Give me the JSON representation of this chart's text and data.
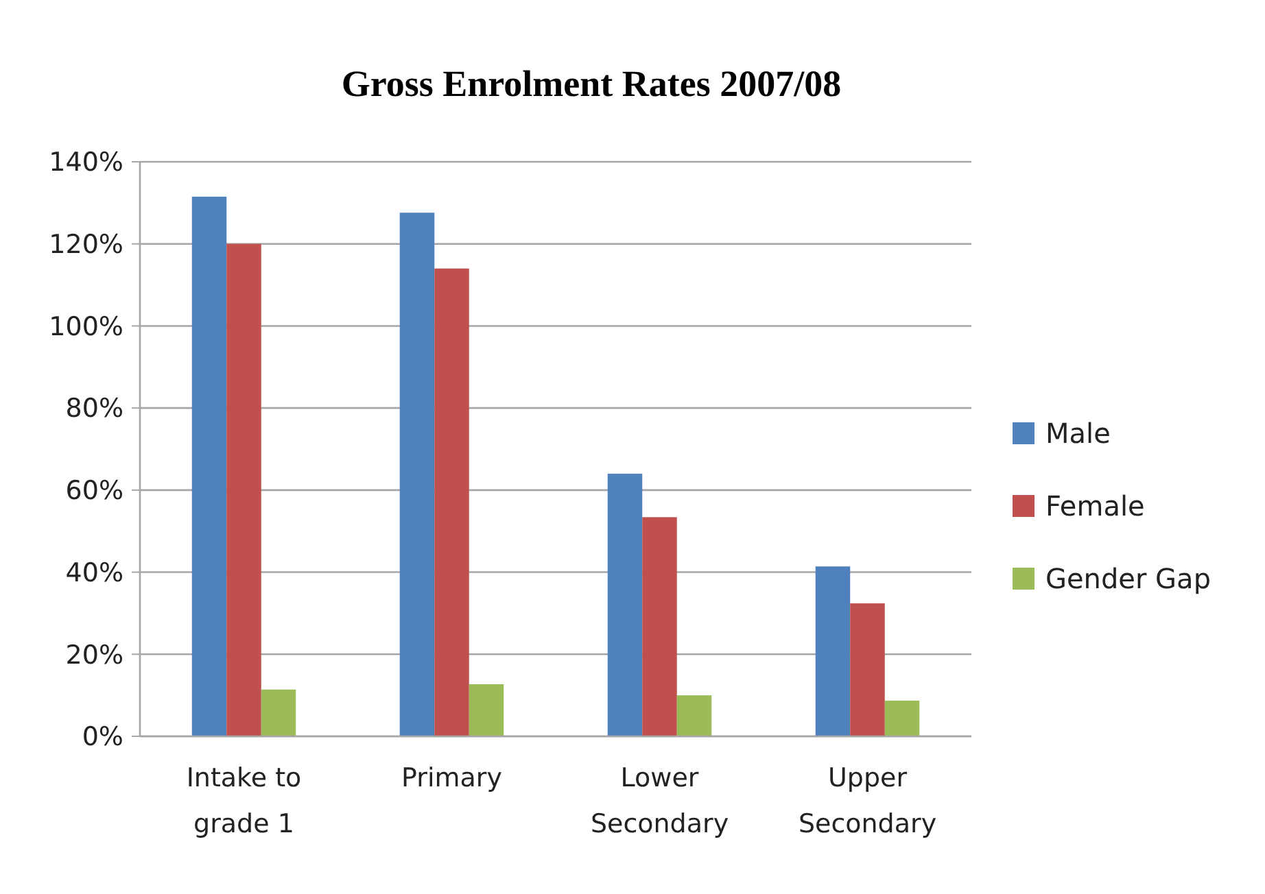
{
  "chart_data": {
    "type": "bar",
    "title": "Gross Enrolment Rates 2007/08",
    "categories": [
      "Intake to grade 1",
      "Primary",
      "Lower Secondary",
      "Upper Secondary"
    ],
    "series": [
      {
        "name": "Male",
        "color": "#4f81bd",
        "values": [
          131.5,
          127.6,
          64,
          41.4
        ]
      },
      {
        "name": "Female",
        "color": "#c0504d",
        "values": [
          120,
          114,
          53.4,
          32.4
        ]
      },
      {
        "name": "Gender Gap",
        "color": "#9bbb59",
        "values": [
          11.4,
          12.7,
          10,
          8.7
        ]
      }
    ],
    "ylim": [
      0,
      140
    ],
    "yticks": [
      {
        "value": 0,
        "label": "0%"
      },
      {
        "value": 20,
        "label": "20%"
      },
      {
        "value": 40,
        "label": "40%"
      },
      {
        "value": 60,
        "label": "60%"
      },
      {
        "value": 80,
        "label": "80%"
      },
      {
        "value": 100,
        "label": "100%"
      },
      {
        "value": 120,
        "label": "120%"
      },
      {
        "value": 140,
        "label": "140%"
      }
    ],
    "grid": "y",
    "legend": "right"
  }
}
